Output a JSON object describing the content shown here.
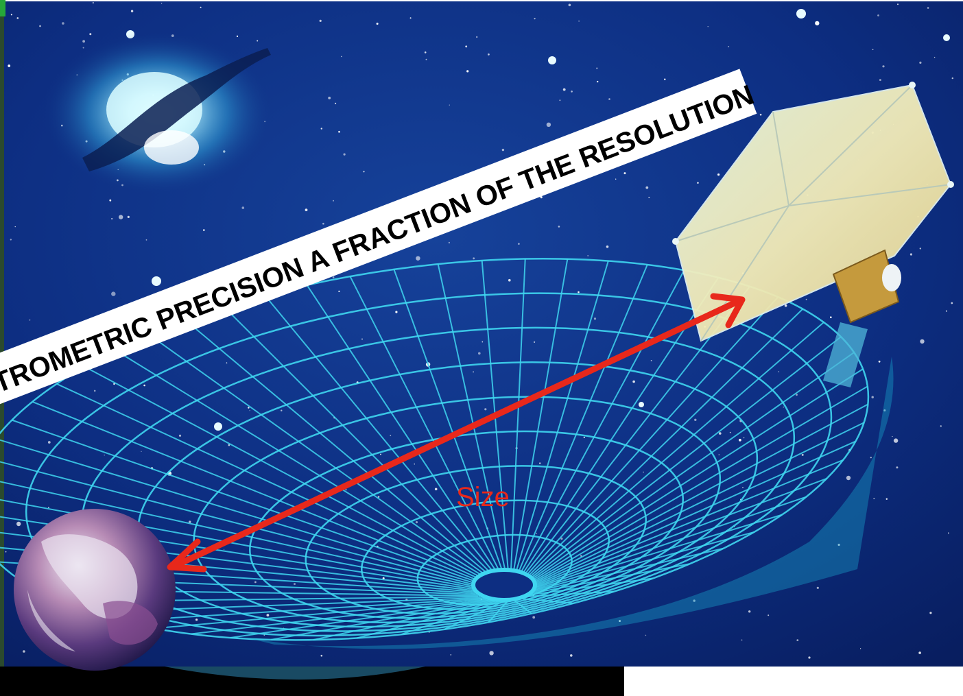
{
  "banner": {
    "text": "TROMETRIC PRECISION A FRACTION OF THE RESOLUTION"
  },
  "measure": {
    "label": "Size"
  },
  "colors": {
    "space": "#0c2a7a",
    "dish_grid": "#3fd6f0",
    "arrow": "#e8281b",
    "banner_bg": "#ffffff",
    "banner_text": "#000000"
  },
  "icons": {
    "earth": "earth-icon",
    "satellite": "satellite-icon",
    "galaxy": "galaxy-icon",
    "dish": "radio-dish-icon"
  }
}
